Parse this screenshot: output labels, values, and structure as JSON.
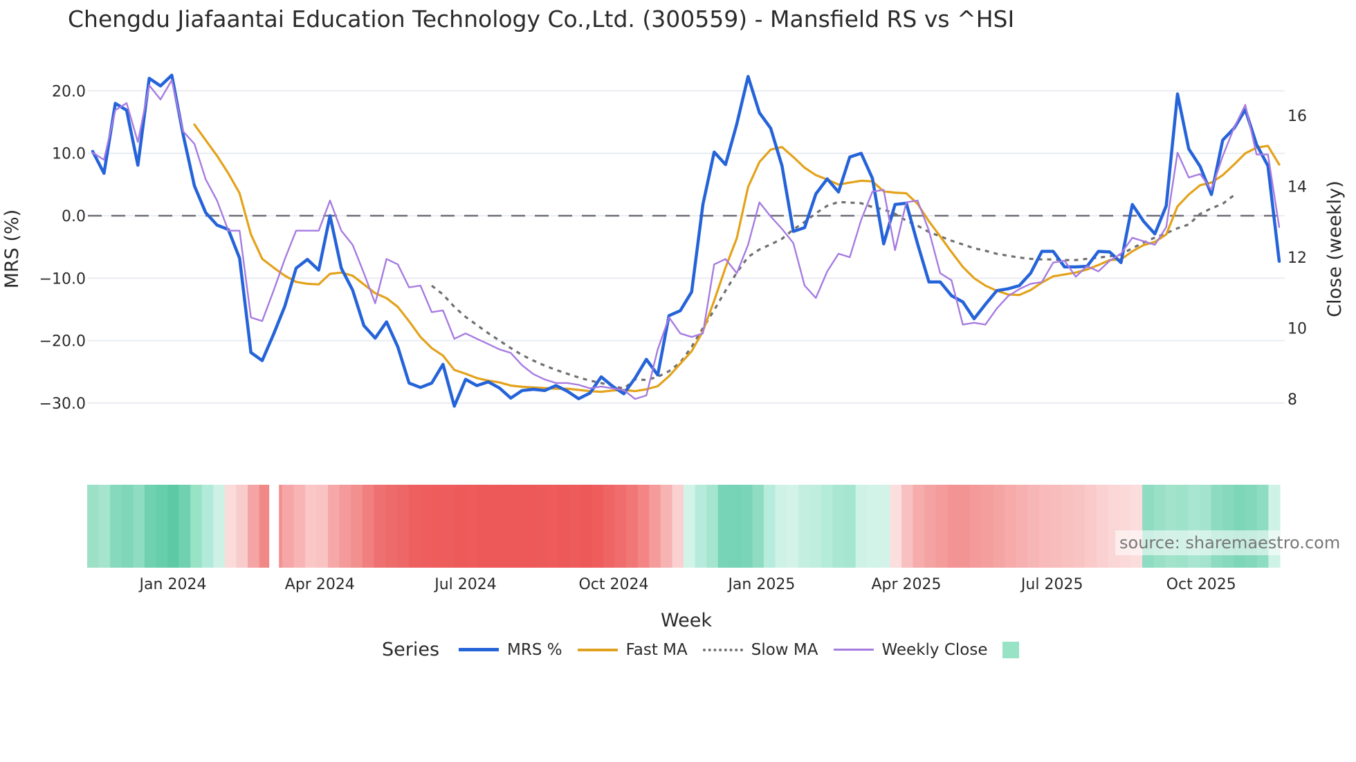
{
  "title": "Chengdu Jiafaantai Education Technology Co.,Ltd. (300559) - Mansfield RS vs ^HSI",
  "source_note": "source: sharemaestro.com",
  "legend": {
    "title": "Series",
    "items": [
      {
        "label": "MRS %",
        "color": "#2563d9",
        "style": "solid",
        "width": 4
      },
      {
        "label": "Fast MA",
        "color": "#e0a020",
        "style": "solid",
        "width": 3
      },
      {
        "label": "Slow MA",
        "color": "#6f6f6f",
        "style": "dotted",
        "width": 3
      },
      {
        "label": "Weekly Close",
        "color": "#a67be0",
        "style": "solid",
        "width": 2
      },
      {
        "label": "",
        "color": "#98e2c6",
        "style": "box"
      }
    ]
  },
  "chart_data": {
    "type": "line",
    "title": "Chengdu Jiafaantai Education Technology Co.,Ltd. (300559) - Mansfield RS vs ^HSI",
    "xlabel": "Week",
    "ylabel": "MRS (%)",
    "y2label": "Close (weekly)",
    "ylim": [
      -33.5,
      24.5
    ],
    "y2lim": [
      7.3,
      17.2
    ],
    "yticks": [
      "20.0",
      "10.0",
      "0.0",
      "−10.0",
      "−20.0",
      "−30.0"
    ],
    "ytick_values": [
      20,
      10,
      0,
      -10,
      -20,
      -30
    ],
    "y2ticks": [
      "16",
      "14",
      "12",
      "10",
      "8"
    ],
    "y2tick_values": [
      16,
      14,
      12,
      10,
      8
    ],
    "xticks": [
      "Jan 2024",
      "Apr 2024",
      "Jul 2024",
      "Oct 2024",
      "Jan 2025",
      "Apr 2025",
      "Jul 2025",
      "Oct 2025"
    ],
    "xtick_index": [
      7.1,
      20.1,
      33.0,
      46.1,
      59.2,
      72.0,
      84.9,
      98.1
    ],
    "zero_line": 0,
    "grid": true,
    "legend_position": "bottom",
    "n_weeks": 106,
    "series": [
      {
        "name": "MRS %",
        "axis": "left",
        "values": [
          10.3,
          6.8,
          18.0,
          16.9,
          8.1,
          22.0,
          20.8,
          22.5,
          13.0,
          4.8,
          0.5,
          -1.5,
          -2.2,
          -6.8,
          -21.9,
          -23.2,
          -19.0,
          -14.5,
          -8.4,
          -7.0,
          -8.7,
          0.0,
          -8.4,
          -11.9,
          -17.6,
          -19.6,
          -17.0,
          -21.0,
          -26.8,
          -27.5,
          -26.8,
          -23.8,
          -30.5,
          -26.2,
          -27.2,
          -26.6,
          -27.6,
          -29.2,
          -28.0,
          -27.8,
          -28.0,
          -27.2,
          -28.1,
          -29.3,
          -28.4,
          -25.8,
          -27.3,
          -28.5,
          -26.0,
          -23.0,
          -25.5,
          -16.0,
          -15.2,
          -12.2,
          1.8,
          10.2,
          8.2,
          14.7,
          22.3,
          16.5,
          14.0,
          8.0,
          -2.5,
          -1.9,
          3.5,
          5.9,
          3.8,
          9.4,
          10.0,
          6.0,
          -4.5,
          1.8,
          2.0,
          -4.5,
          -10.6,
          -10.6,
          -12.8,
          -13.8,
          -16.5,
          -14.2,
          -12.0,
          -11.7,
          -11.2,
          -9.2,
          -5.7,
          -5.7,
          -8.2,
          -8.2,
          -8.1,
          -5.7,
          -5.8,
          -7.5,
          1.8,
          -0.9,
          -2.9,
          1.6,
          19.5,
          10.7,
          7.9,
          3.4,
          12.1,
          14.0,
          17.0,
          11.4,
          8.0,
          -7.3
        ]
      },
      {
        "name": "Fast MA",
        "axis": "left",
        "values": [
          null,
          null,
          null,
          null,
          null,
          null,
          null,
          null,
          null,
          14.6,
          12.1,
          9.6,
          6.8,
          3.6,
          -3.0,
          -6.9,
          -8.3,
          -9.6,
          -10.6,
          -10.9,
          -11.0,
          -9.3,
          -9.1,
          -9.6,
          -11.0,
          -12.4,
          -13.2,
          -14.6,
          -16.9,
          -19.4,
          -21.2,
          -22.4,
          -24.7,
          -25.3,
          -26.0,
          -26.4,
          -26.7,
          -27.2,
          -27.4,
          -27.5,
          -27.6,
          -27.7,
          -27.7,
          -27.9,
          -28.1,
          -28.2,
          -28.0,
          -27.9,
          -28.1,
          -27.8,
          -27.3,
          -25.7,
          -23.7,
          -21.7,
          -18.5,
          -13.6,
          -8.3,
          -3.6,
          4.6,
          8.6,
          10.6,
          11.0,
          9.4,
          7.7,
          6.5,
          5.8,
          5.0,
          5.3,
          5.6,
          5.5,
          3.9,
          3.7,
          3.6,
          1.9,
          -0.9,
          -3.3,
          -5.8,
          -8.2,
          -10.0,
          -11.2,
          -12.0,
          -12.6,
          -12.7,
          -11.9,
          -10.7,
          -9.7,
          -9.4,
          -9.1,
          -8.6,
          -7.9,
          -7.1,
          -7.0,
          -5.7,
          -4.7,
          -4.2,
          -3.0,
          1.5,
          3.4,
          4.9,
          5.3,
          6.5,
          8.2,
          10.0,
          10.9,
          11.2,
          8.2
        ]
      },
      {
        "name": "Slow MA",
        "axis": "left",
        "values": [
          null,
          null,
          null,
          null,
          null,
          null,
          null,
          null,
          null,
          null,
          null,
          null,
          null,
          null,
          null,
          null,
          null,
          null,
          null,
          null,
          null,
          null,
          null,
          null,
          null,
          null,
          null,
          null,
          null,
          null,
          -11.2,
          -12.6,
          -14.6,
          -16.2,
          -17.5,
          -18.8,
          -20.0,
          -21.2,
          -22.3,
          -23.2,
          -24.0,
          -24.7,
          -25.3,
          -25.9,
          -26.4,
          -26.8,
          -27.2,
          -27.7,
          -26.2,
          -26.3,
          -25.8,
          -24.9,
          -23.5,
          -21.0,
          -18.0,
          -15.1,
          -12.0,
          -9.1,
          -6.6,
          -5.4,
          -4.6,
          -3.7,
          -2.2,
          -1.0,
          0.4,
          1.6,
          2.2,
          2.1,
          2.0,
          1.4,
          1.0,
          0.3,
          -0.8,
          -1.6,
          -2.6,
          -3.3,
          -4.0,
          -4.6,
          -5.2,
          -5.6,
          -6.1,
          -6.4,
          -6.7,
          -6.9,
          -7.0,
          -7.0,
          -7.1,
          -7.1,
          -6.9,
          -6.7,
          -6.5,
          -6.2,
          -5.2,
          -4.3,
          -3.5,
          -2.8,
          -2.0,
          -1.4,
          0.3,
          1.2,
          1.9,
          3.3
        ]
      },
      {
        "name": "Weekly Close",
        "axis": "right",
        "values": [
          14.95,
          14.75,
          16.15,
          16.35,
          15.25,
          16.85,
          16.45,
          17.0,
          15.55,
          15.2,
          14.2,
          13.6,
          12.75,
          12.75,
          10.3,
          10.2,
          11.05,
          11.95,
          12.75,
          12.75,
          12.75,
          13.6,
          12.75,
          12.35,
          11.55,
          10.7,
          11.95,
          11.8,
          11.15,
          11.2,
          10.45,
          10.5,
          9.7,
          9.85,
          9.7,
          9.55,
          9.4,
          9.3,
          8.95,
          8.7,
          8.55,
          8.45,
          8.45,
          8.4,
          8.3,
          8.35,
          8.3,
          8.25,
          8.0,
          8.1,
          9.4,
          10.3,
          9.85,
          9.75,
          9.85,
          11.8,
          11.95,
          11.55,
          12.35,
          13.55,
          13.15,
          12.8,
          12.4,
          11.2,
          10.85,
          11.6,
          12.1,
          12.0,
          13.05,
          13.85,
          13.9,
          12.2,
          13.55,
          13.6,
          12.75,
          11.55,
          11.35,
          10.1,
          10.15,
          10.1,
          10.55,
          10.9,
          11.1,
          11.25,
          11.3,
          11.85,
          11.9,
          11.45,
          11.75,
          11.6,
          11.9,
          12.1,
          12.55,
          12.45,
          12.35,
          12.85,
          14.95,
          14.25,
          14.35,
          13.9,
          14.85,
          15.65,
          16.3,
          14.9,
          14.9,
          12.85
        ]
      }
    ],
    "heatmap": {
      "description": "Weekly MRS color strip (green = positive, red = negative)",
      "gap_after_index": 15,
      "colors": [
        "#9de0c8",
        "#a5e4cd",
        "#86d9bc",
        "#80d6b8",
        "#8edcc2",
        "#6fd1b0",
        "#67ceac",
        "#5dcaa5",
        "#6fd1b0",
        "#98e2c6",
        "#b2eada",
        "#cdf1e5",
        "#fbdada",
        "#f9cccc",
        "#f4a4a4",
        "#f08888",
        "#f39090",
        "#f6a6a6",
        "#f8b4b4",
        "#fac6c6",
        "#f9c3c3",
        "#f6a8a8",
        "#f49a9a",
        "#f29090",
        "#f27f7f",
        "#ef7070",
        "#ee6b6b",
        "#ee6767",
        "#ee6060",
        "#ef5e5e",
        "#ee5c5c",
        "#ee5d5d",
        "#ed5a5a",
        "#ee5b5b",
        "#ed5858",
        "#ed5959",
        "#ed5858",
        "#ed5959",
        "#ed5858",
        "#ed5a5a",
        "#ee5b5b",
        "#ed5959",
        "#ee5b5b",
        "#ed5858",
        "#ee5c5c",
        "#ef6565",
        "#f06d6d",
        "#f17777",
        "#f38585",
        "#f59b9b",
        "#f7b2b2",
        "#fad0d0",
        "#d2f3e7",
        "#b6ebdc",
        "#a5e5cf",
        "#78d4b6",
        "#76d3b5",
        "#7ad5b8",
        "#8fdcc2",
        "#b6ecdb",
        "#cef2e6",
        "#d3f3e8",
        "#c4efe0",
        "#c0eede",
        "#b5ebd9",
        "#a9e7d3",
        "#a5e6d1",
        "#cef2e6",
        "#d2f3e7",
        "#d3f3e8",
        "#fbdede",
        "#f8c0c0",
        "#f6acac",
        "#f4a2a2",
        "#f49c9c",
        "#f39494",
        "#f39494",
        "#f49a9a",
        "#f49e9e",
        "#f5a4a4",
        "#f6aaaa",
        "#f7b0b0",
        "#f7b6b6",
        "#f8baba",
        "#f8bcbc",
        "#f9c0c0",
        "#f9c3c3",
        "#facaca",
        "#fbd0d0",
        "#fbd6d6",
        "#fbd9d9",
        "#fcdddd",
        "#8edcc2",
        "#99e0c7",
        "#a2e3cc",
        "#9ee2ca",
        "#a9e6d1",
        "#a4e4ce",
        "#8ddbc1",
        "#86d9bc",
        "#7dd6b8",
        "#83d8bb",
        "#8edcc2",
        "#cff2e6"
      ]
    }
  }
}
